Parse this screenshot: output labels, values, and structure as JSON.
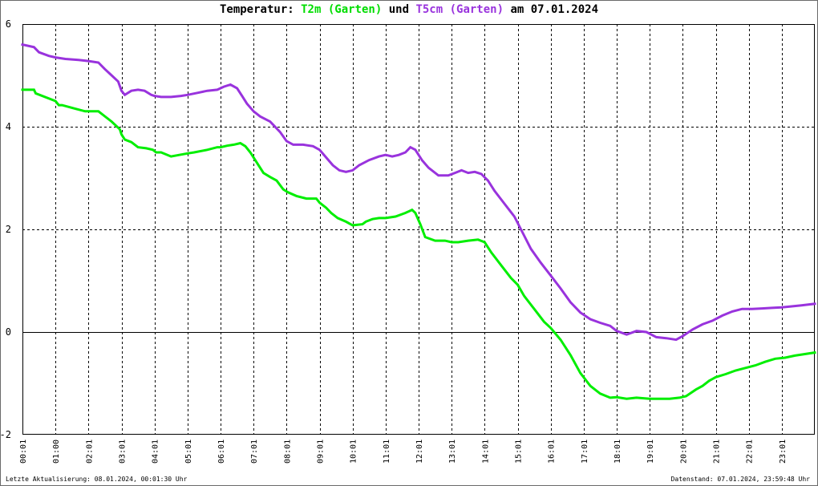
{
  "title": {
    "prefix": "Temperatur: ",
    "series1": "T2m (Garten)",
    "mid": " und ",
    "series2": "T5cm (Garten)",
    "suffix": " am 07.01.2024"
  },
  "footer": {
    "left": "Letzte Aktualisierung: 08.01.2024, 00:01:30 Uhr",
    "right": "Datenstand: 07.01.2024, 23:59:48 Uhr"
  },
  "colors": {
    "series1": "#00ee00",
    "series2": "#9933dd",
    "zero_line": "#000000",
    "grid": "#000000"
  },
  "chart_data": {
    "type": "line",
    "title": "Temperatur: T2m (Garten) und T5cm (Garten) am 07.01.2024",
    "xlabel": "",
    "ylabel": "",
    "xlim": [
      0,
      24
    ],
    "ylim": [
      -2,
      6
    ],
    "yticks": [
      -2,
      0,
      2,
      4,
      6
    ],
    "xtick_labels": [
      "00:01",
      "01:00",
      "02:01",
      "03:01",
      "04:01",
      "05:01",
      "06:01",
      "07:01",
      "08:01",
      "09:01",
      "10:01",
      "11:01",
      "12:01",
      "13:01",
      "14:01",
      "15:01",
      "16:01",
      "17:01",
      "18:01",
      "19:01",
      "20:01",
      "21:01",
      "22:01",
      "23:01"
    ],
    "grid": true,
    "series": [
      {
        "name": "T2m (Garten)",
        "color": "#00ee00",
        "x": [
          0,
          0.35,
          0.4,
          1.0,
          1.1,
          1.2,
          1.6,
          1.9,
          2.3,
          2.7,
          2.95,
          3.0,
          3.1,
          3.3,
          3.5,
          3.75,
          3.95,
          4.05,
          4.2,
          4.5,
          4.75,
          5.0,
          5.2,
          5.6,
          5.9,
          6.0,
          6.2,
          6.4,
          6.6,
          6.75,
          6.9,
          7.1,
          7.3,
          7.5,
          7.7,
          7.9,
          8.05,
          8.3,
          8.6,
          8.9,
          9.0,
          9.2,
          9.35,
          9.55,
          9.8,
          10.0,
          10.3,
          10.4,
          10.6,
          10.8,
          11.0,
          11.3,
          11.6,
          11.8,
          11.9,
          12.05,
          12.2,
          12.5,
          12.8,
          13.0,
          13.2,
          13.5,
          13.8,
          14.0,
          14.2,
          14.5,
          14.8,
          15.0,
          15.2,
          15.5,
          15.8,
          16.0,
          16.3,
          16.6,
          16.9,
          17.2,
          17.5,
          17.8,
          18.0,
          18.3,
          18.6,
          19.0,
          19.3,
          19.6,
          19.9,
          20.1,
          20.4,
          20.6,
          20.8,
          21.0,
          21.3,
          21.6,
          21.9,
          22.2,
          22.5,
          22.8,
          23.1,
          23.4,
          23.7,
          24.0
        ],
        "y": [
          4.72,
          4.72,
          4.65,
          4.5,
          4.42,
          4.42,
          4.35,
          4.3,
          4.3,
          4.1,
          3.95,
          3.85,
          3.75,
          3.7,
          3.6,
          3.58,
          3.55,
          3.5,
          3.5,
          3.42,
          3.45,
          3.48,
          3.5,
          3.55,
          3.6,
          3.6,
          3.63,
          3.65,
          3.68,
          3.62,
          3.5,
          3.3,
          3.1,
          3.02,
          2.95,
          2.78,
          2.72,
          2.65,
          2.6,
          2.6,
          2.52,
          2.42,
          2.32,
          2.22,
          2.15,
          2.08,
          2.1,
          2.15,
          2.2,
          2.22,
          2.22,
          2.25,
          2.32,
          2.38,
          2.32,
          2.1,
          1.85,
          1.78,
          1.78,
          1.75,
          1.75,
          1.78,
          1.8,
          1.75,
          1.55,
          1.3,
          1.05,
          0.92,
          0.7,
          0.45,
          0.2,
          0.08,
          -0.15,
          -0.45,
          -0.8,
          -1.05,
          -1.2,
          -1.28,
          -1.27,
          -1.3,
          -1.28,
          -1.3,
          -1.3,
          -1.3,
          -1.28,
          -1.25,
          -1.12,
          -1.05,
          -0.95,
          -0.88,
          -0.82,
          -0.75,
          -0.7,
          -0.65,
          -0.58,
          -0.52,
          -0.5,
          -0.46,
          -0.43,
          -0.4
        ]
      },
      {
        "name": "T5cm (Garten)",
        "color": "#9933dd",
        "x": [
          0,
          0.35,
          0.5,
          0.8,
          1.0,
          1.3,
          1.7,
          2.0,
          2.3,
          2.5,
          2.7,
          2.9,
          3.0,
          3.1,
          3.3,
          3.5,
          3.7,
          3.9,
          4.0,
          4.2,
          4.5,
          4.8,
          5.0,
          5.3,
          5.6,
          5.9,
          6.1,
          6.3,
          6.5,
          6.65,
          6.8,
          7.0,
          7.2,
          7.5,
          7.8,
          8.0,
          8.2,
          8.5,
          8.8,
          9.0,
          9.2,
          9.4,
          9.6,
          9.8,
          10.0,
          10.2,
          10.5,
          10.8,
          11.0,
          11.2,
          11.4,
          11.6,
          11.75,
          11.9,
          12.1,
          12.3,
          12.6,
          12.9,
          13.1,
          13.3,
          13.5,
          13.7,
          13.9,
          14.1,
          14.3,
          14.6,
          14.9,
          15.1,
          15.4,
          15.7,
          16.0,
          16.3,
          16.6,
          16.9,
          17.2,
          17.5,
          17.8,
          18.0,
          18.3,
          18.6,
          18.9,
          19.2,
          19.5,
          19.8,
          20.0,
          20.3,
          20.6,
          20.9,
          21.2,
          21.5,
          21.8,
          22.1,
          22.4,
          22.7,
          23.0,
          23.3,
          23.6,
          24.0
        ],
        "y": [
          5.6,
          5.55,
          5.45,
          5.38,
          5.35,
          5.32,
          5.3,
          5.28,
          5.25,
          5.12,
          5.0,
          4.88,
          4.7,
          4.62,
          4.7,
          4.72,
          4.7,
          4.62,
          4.6,
          4.58,
          4.58,
          4.6,
          4.62,
          4.66,
          4.7,
          4.72,
          4.78,
          4.82,
          4.75,
          4.6,
          4.45,
          4.3,
          4.2,
          4.1,
          3.9,
          3.72,
          3.65,
          3.65,
          3.62,
          3.55,
          3.4,
          3.25,
          3.15,
          3.12,
          3.15,
          3.25,
          3.35,
          3.42,
          3.45,
          3.42,
          3.45,
          3.5,
          3.6,
          3.55,
          3.35,
          3.2,
          3.05,
          3.05,
          3.1,
          3.15,
          3.1,
          3.12,
          3.08,
          2.95,
          2.75,
          2.5,
          2.25,
          2.0,
          1.62,
          1.35,
          1.1,
          0.85,
          0.58,
          0.38,
          0.25,
          0.18,
          0.12,
          0.02,
          -0.05,
          0.02,
          0.0,
          -0.1,
          -0.12,
          -0.15,
          -0.08,
          0.05,
          0.15,
          0.22,
          0.32,
          0.4,
          0.45,
          0.45,
          0.46,
          0.47,
          0.48,
          0.5,
          0.52,
          0.55
        ]
      }
    ]
  }
}
